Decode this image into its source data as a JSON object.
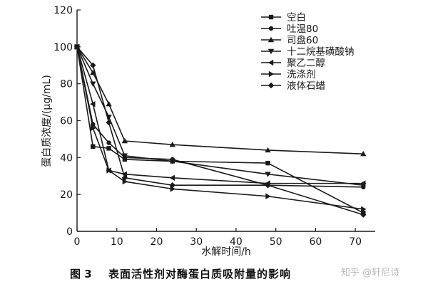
{
  "figure": {
    "number": "图 3",
    "caption": "表面活性剂对酶蛋白质吸附量的影响",
    "watermark": "知乎 @轩尼诗"
  },
  "chart_data": {
    "type": "line",
    "xlabel": "水解时间/h",
    "ylabel": "蛋白质浓度/(μg/mL)",
    "xlim": [
      0,
      75
    ],
    "ylim": [
      0,
      120
    ],
    "xticks": [
      0,
      10,
      20,
      30,
      40,
      50,
      60,
      70
    ],
    "yticks": [
      0,
      20,
      40,
      60,
      80,
      100,
      120
    ],
    "grid": false,
    "legend_position": "top-right",
    "x": [
      0,
      4,
      8,
      12,
      24,
      48,
      72
    ],
    "series": [
      {
        "name": "空白",
        "marker": "square",
        "values": [
          100,
          46,
          45,
          39,
          38,
          37,
          10
        ]
      },
      {
        "name": "吐温80",
        "marker": "circle",
        "values": [
          100,
          58,
          48,
          40,
          39,
          25,
          24
        ]
      },
      {
        "name": "司盘60",
        "marker": "triangle-up",
        "values": [
          100,
          86,
          69,
          49,
          47,
          44,
          42
        ]
      },
      {
        "name": "十二烷基磺酸钠",
        "marker": "triangle-down",
        "values": [
          100,
          80,
          62,
          41,
          38,
          31,
          25
        ]
      },
      {
        "name": "聚乙二醇",
        "marker": "triangle-left",
        "values": [
          100,
          69,
          33,
          31,
          29,
          26,
          26
        ]
      },
      {
        "name": "洗涤剂",
        "marker": "triangle-right",
        "values": [
          100,
          56,
          33,
          27,
          23,
          19,
          12
        ]
      },
      {
        "name": "液体石蜡",
        "marker": "diamond",
        "values": [
          100,
          90,
          59,
          29,
          25,
          25,
          9
        ]
      }
    ]
  }
}
